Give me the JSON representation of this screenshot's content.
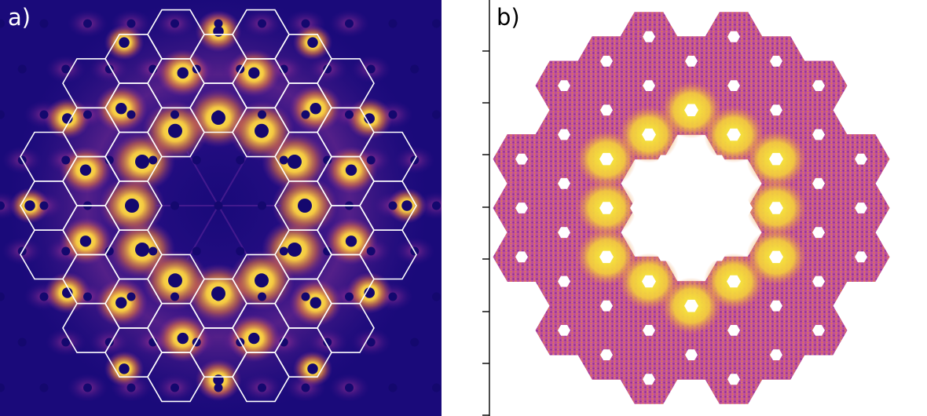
{
  "panels": {
    "a": {
      "label": "a)"
    },
    "b": {
      "label": "b)"
    }
  },
  "colors": {
    "background_dark": "#1a0a7a",
    "hole": "#14086e",
    "glow_hot": "#fff35a",
    "glow_orange": "#f7a43a",
    "glow_magenta": "#a8329a",
    "hex_outline": "#ffffff",
    "plot_fill_magenta": "#b44fa0",
    "plot_fill_orange": "#e38248",
    "plot_fill_yellow": "#f5ee3a",
    "axis": "#000000"
  },
  "icons": {
    "hole": "dark-circle-marker",
    "hex_cell": "hexagon-outline"
  }
}
